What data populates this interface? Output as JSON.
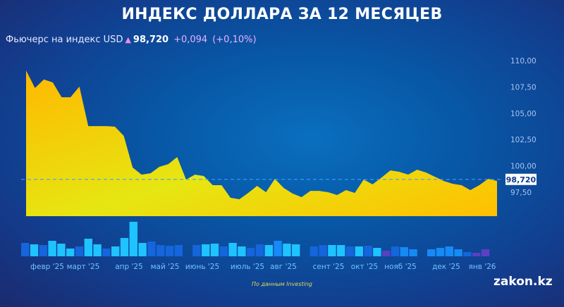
{
  "title": "ИНДЕКС ДОЛЛАРА ЗА 12 МЕСЯЦЕВ",
  "subtitle": {
    "label": "Фьючерс на индекс USD",
    "arrow_icon": "arrow-up-icon",
    "price": "98,720",
    "change": "+0,094",
    "change_pct": "(+0,10%)"
  },
  "source": "По данным Investing",
  "logo": "zakon.kz",
  "colors": {
    "area_top": "#ffb800",
    "area_bottom": "#e8ea10",
    "current_line": "#3aa0ff",
    "vol_light": "#1ec3ff",
    "vol_mid": "#168af5",
    "vol_dark": "#1565dc",
    "vol_purple": "#5a40c2"
  },
  "chart_data": {
    "type": "area",
    "title": "ИНДЕКС ДОЛЛАРА ЗА 12 МЕСЯЦЕВ",
    "ylim": [
      95.3,
      110
    ],
    "y_ticks": [
      "110,00",
      "107,50",
      "105,00",
      "102,50",
      "100,00",
      "97,50"
    ],
    "y_tick_values": [
      110,
      107.5,
      105,
      102.5,
      100,
      97.5
    ],
    "x_tick_labels": [
      "февр '25",
      "март '25",
      "апр '25",
      "май '25",
      "июнь '25",
      "июль '25",
      "авг '25",
      "сент '25",
      "окт '25",
      "нояб '25",
      "дек '25",
      "янв '26"
    ],
    "current_value": 98.72,
    "current_label": "98,720",
    "values": [
      109.06,
      107.39,
      108.2,
      107.93,
      106.52,
      106.52,
      107.53,
      103.78,
      103.78,
      103.78,
      103.72,
      102.85,
      99.84,
      99.17,
      99.3,
      99.91,
      100.17,
      100.84,
      98.7,
      99.17,
      99.04,
      98.17,
      98.17,
      96.97,
      96.83,
      97.43,
      98.1,
      97.5,
      98.77,
      97.9,
      97.37,
      97.03,
      97.63,
      97.63,
      97.5,
      97.23,
      97.7,
      97.43,
      98.7,
      98.24,
      98.9,
      99.57,
      99.44,
      99.17,
      99.64,
      99.37,
      98.97,
      98.57,
      98.3,
      98.17,
      97.7,
      98.17,
      98.77,
      98.57
    ],
    "volume_relative": [
      19,
      17,
      16,
      22,
      18,
      11,
      14,
      25,
      17,
      11,
      14,
      26,
      49,
      19,
      21,
      16,
      15,
      16,
      null,
      16,
      17,
      18,
      14,
      19,
      14,
      12,
      17,
      16,
      22,
      18,
      17,
      null,
      14,
      16,
      16,
      16,
      14,
      14,
      15,
      12,
      8,
      14,
      13,
      10,
      null,
      10,
      12,
      14,
      10,
      6,
      5,
      10
    ],
    "volume_tones": [
      "d",
      "l",
      "d",
      "l",
      "l",
      "l",
      "d",
      "l",
      "l",
      "d",
      "l",
      "l",
      "l",
      "l",
      "d",
      "d",
      "d",
      "d",
      "",
      "d",
      "l",
      "l",
      "d",
      "l",
      "l",
      "d",
      "d",
      "l",
      "m",
      "l",
      "l",
      "",
      "d",
      "d",
      "l",
      "l",
      "d",
      "l",
      "d",
      "l",
      "p",
      "d",
      "m",
      "m",
      "",
      "m",
      "m",
      "m",
      "m",
      "d",
      "p",
      "p"
    ]
  }
}
